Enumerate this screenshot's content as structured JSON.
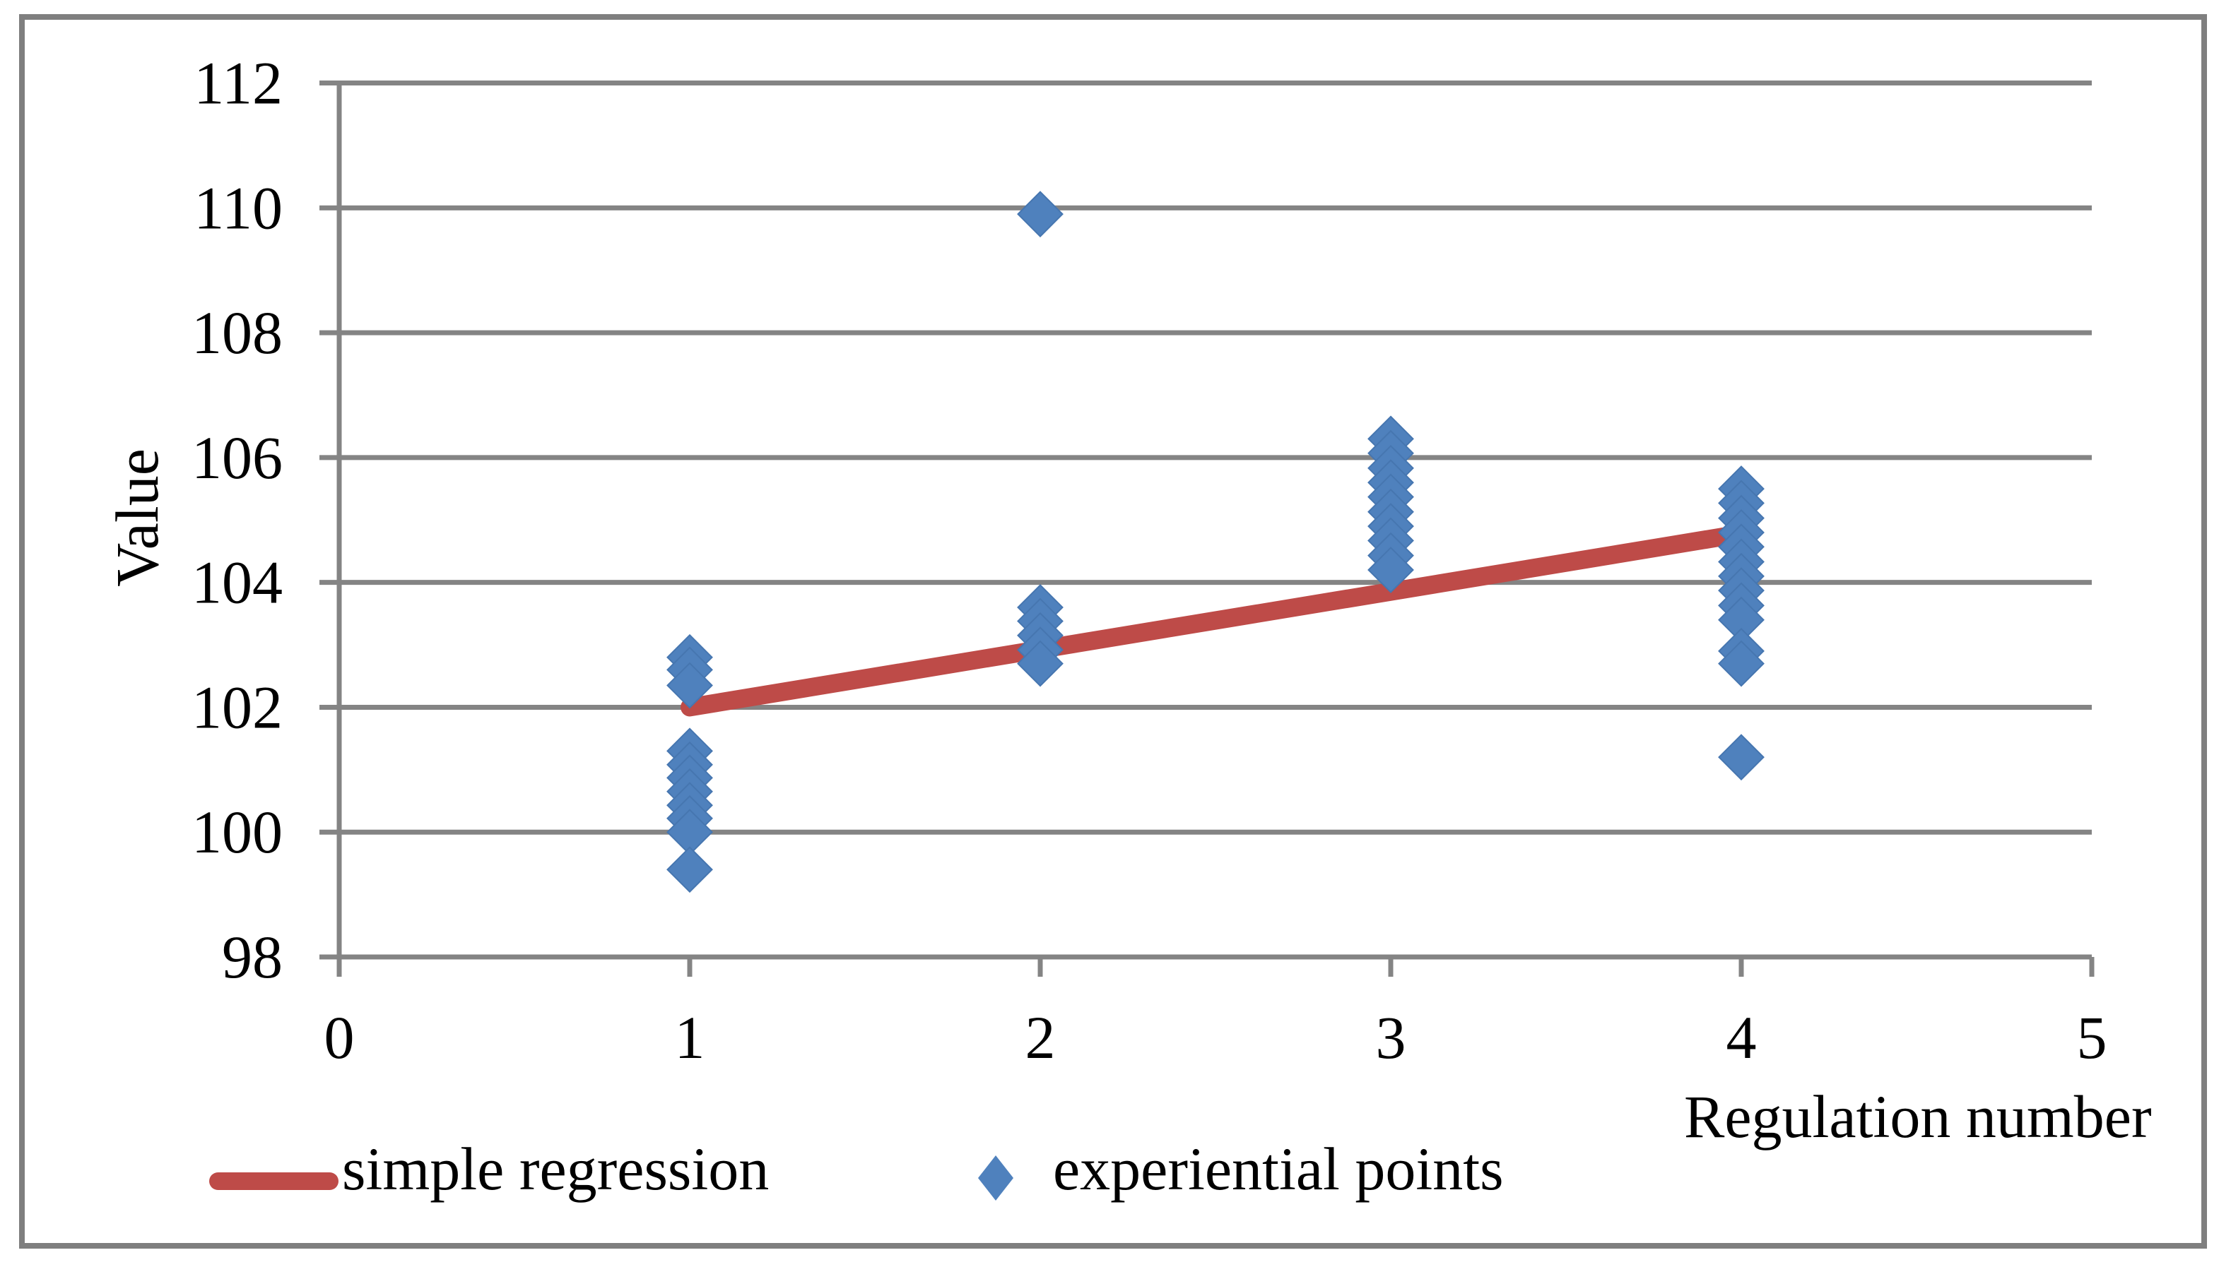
{
  "chart_data": {
    "type": "scatter",
    "title": "",
    "xlabel": "Regulation number",
    "ylabel": "Value",
    "xlim": [
      0,
      5
    ],
    "ylim": [
      98,
      112
    ],
    "xticks": [
      0,
      1,
      2,
      3,
      4,
      5
    ],
    "yticks": [
      98,
      100,
      102,
      104,
      106,
      108,
      110,
      112
    ],
    "grid": true,
    "legend_position": "bottom",
    "colors": {
      "gridline": "#848484",
      "axis": "#848484",
      "frame_border": "#7f7f7f",
      "regression_red": "#be4b48",
      "point_blue": "#4f81bd",
      "text": "#000000"
    },
    "series": [
      {
        "name": "simple regression",
        "type": "line",
        "color": "#be4b48",
        "points": [
          [
            1,
            102.0
          ],
          [
            4,
            104.78
          ]
        ]
      },
      {
        "name": "experiential points",
        "type": "scatter",
        "marker": "diamond",
        "color": "#4f81bd",
        "points": [
          [
            1,
            102.8
          ],
          [
            1,
            102.6
          ],
          [
            1,
            102.35
          ],
          [
            1,
            101.3
          ],
          [
            1,
            101.08
          ],
          [
            1,
            100.87
          ],
          [
            1,
            100.65
          ],
          [
            1,
            100.43
          ],
          [
            1,
            100.22
          ],
          [
            1,
            100.0
          ],
          [
            1,
            99.4
          ],
          [
            2,
            109.9
          ],
          [
            2,
            103.6
          ],
          [
            2,
            103.38
          ],
          [
            2,
            103.15
          ],
          [
            2,
            102.92
          ],
          [
            2,
            102.7
          ],
          [
            3,
            106.3
          ],
          [
            3,
            106.07
          ],
          [
            3,
            105.83
          ],
          [
            3,
            105.6
          ],
          [
            3,
            105.37
          ],
          [
            3,
            105.13
          ],
          [
            3,
            104.9
          ],
          [
            3,
            104.67
          ],
          [
            3,
            104.43
          ],
          [
            3,
            104.2
          ],
          [
            4,
            105.5
          ],
          [
            4,
            105.27
          ],
          [
            4,
            105.03
          ],
          [
            4,
            104.8
          ],
          [
            4,
            104.57
          ],
          [
            4,
            104.33
          ],
          [
            4,
            104.1
          ],
          [
            4,
            103.87
          ],
          [
            4,
            103.63
          ],
          [
            4,
            103.4
          ],
          [
            4,
            102.9
          ],
          [
            4,
            102.7
          ],
          [
            4,
            101.2
          ]
        ]
      }
    ]
  },
  "legend": {
    "items": [
      {
        "label": "simple regression",
        "marker": "line-swatch"
      },
      {
        "label": "experiential points",
        "marker": "diamond-swatch"
      }
    ]
  }
}
